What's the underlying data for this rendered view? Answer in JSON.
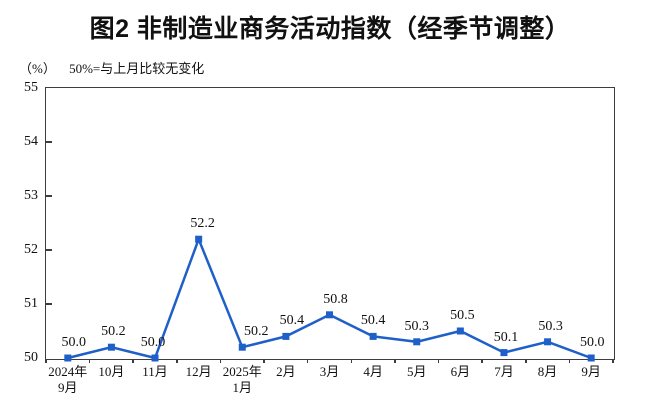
{
  "title": "图2 非制造业商务活动指数（经季节调整）",
  "axis_unit_label": "（%）",
  "subtitle": "50%=与上月比较无变化",
  "colors": {
    "line": "#1E5FC8",
    "axis": "#3D3D3D",
    "text": "#111111"
  },
  "chart_data": {
    "type": "line",
    "title": "图2 非制造业商务活动指数（经季节调整）",
    "note": "50%=与上月比较无变化",
    "unit": "%",
    "categories": [
      [
        "2024年",
        "9月"
      ],
      [
        "10月"
      ],
      [
        "11月"
      ],
      [
        "12月"
      ],
      [
        "2025年",
        "1月"
      ],
      [
        "2月"
      ],
      [
        "3月"
      ],
      [
        "4月"
      ],
      [
        "5月"
      ],
      [
        "6月"
      ],
      [
        "7月"
      ],
      [
        "8月"
      ],
      [
        "9月"
      ]
    ],
    "values": [
      50.0,
      50.2,
      50.0,
      52.2,
      50.2,
      50.4,
      50.8,
      50.4,
      50.3,
      50.5,
      50.1,
      50.3,
      50.0
    ],
    "data_labels": [
      "50.0",
      "50.2",
      "50.0",
      "52.2",
      "50.2",
      "50.4",
      "50.8",
      "50.4",
      "50.3",
      "50.5",
      "50.1",
      "50.3",
      "50.0"
    ],
    "y_ticks": [
      55,
      54,
      53,
      52,
      51,
      50
    ],
    "ylim": [
      50,
      55
    ],
    "xlabel": "",
    "ylabel": "%",
    "grid": false,
    "legend": "none",
    "marker": "square",
    "label_dx": [
      6,
      2,
      -2,
      4,
      14,
      6,
      6,
      0,
      0,
      2,
      2,
      3,
      1
    ]
  }
}
